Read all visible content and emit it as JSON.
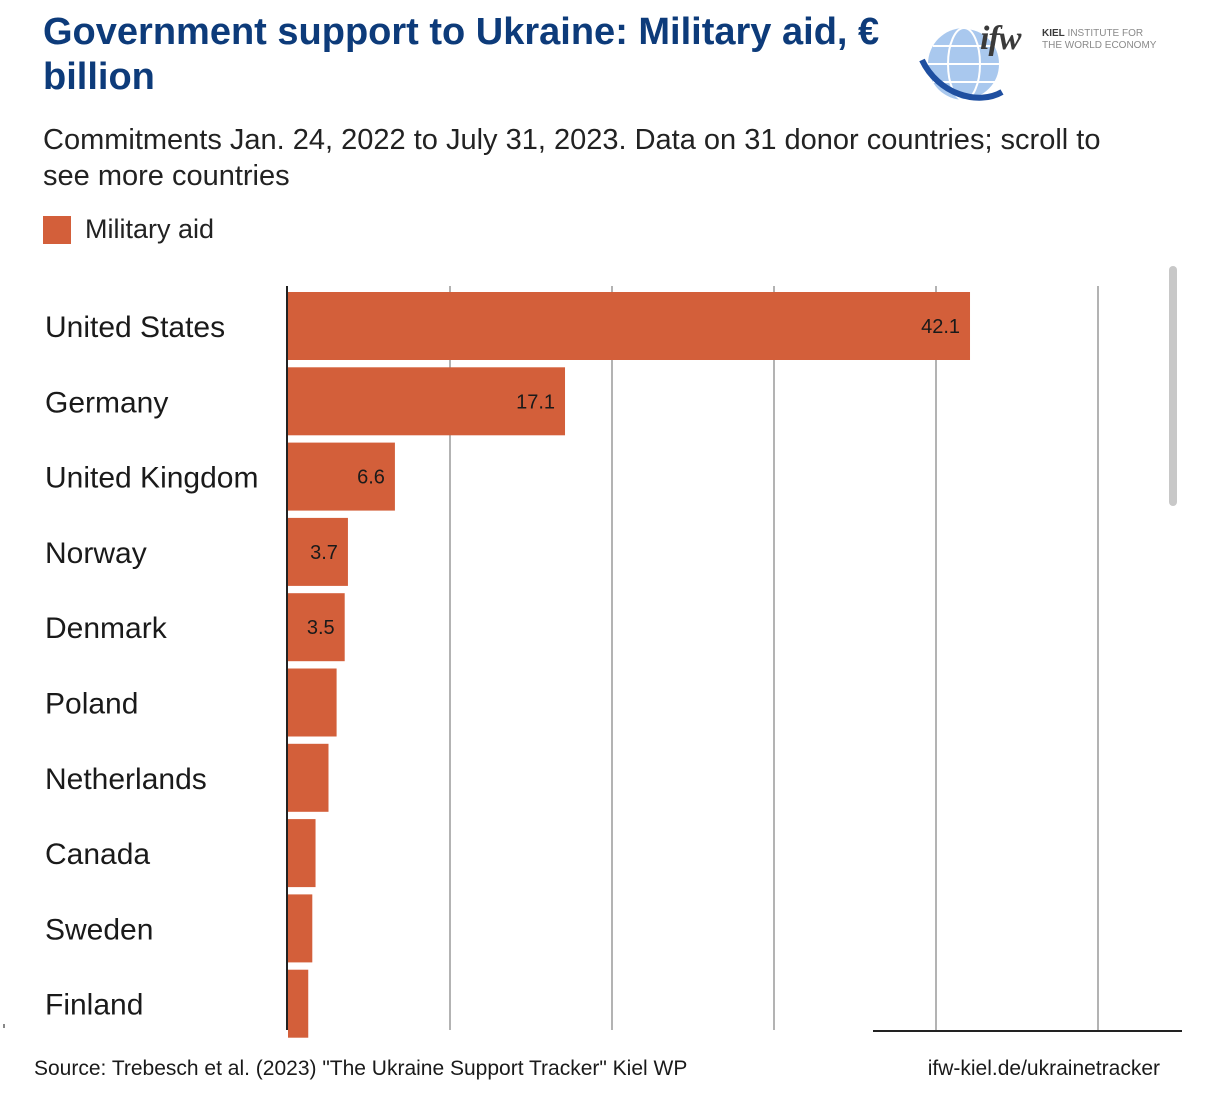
{
  "header": {
    "title": "Government support to Ukraine: Military aid, € billion",
    "subtitle": "Commitments Jan. 24, 2022 to July 31, 2023. Data on 31 donor countries; scroll to see more countries"
  },
  "logo": {
    "mark": "ifw",
    "org_line1_bold": "KIEL",
    "org_line1": " INSTITUTE FOR",
    "org_line2": "THE WORLD ECONOMY"
  },
  "legend": {
    "label": "Military aid",
    "color": "#d35f3a"
  },
  "footer": {
    "source": "Source: Trebesch et al. (2023) \"The Ukraine Support Tracker\" Kiel WP",
    "url": "ifw-kiel.de/ukrainetracker"
  },
  "chart_data": {
    "type": "bar",
    "orientation": "horizontal",
    "title": "Government support to Ukraine: Military aid, € billion",
    "series": [
      {
        "name": "Military aid",
        "values": [
          42.1,
          17.1,
          6.6,
          3.7,
          3.5,
          3.0,
          2.5,
          1.7,
          1.5,
          1.25
        ]
      }
    ],
    "categories": [
      "United States",
      "Germany",
      "United Kingdom",
      "Norway",
      "Denmark",
      "Poland",
      "Netherlands",
      "Canada",
      "Sweden",
      "Finland"
    ],
    "data_labels": [
      "42.1",
      "17.1",
      "6.6",
      "3.7",
      "3.5",
      "",
      "",
      "",
      "",
      ""
    ],
    "xlim": [
      0,
      55
    ],
    "grid_values": [
      10,
      20,
      30,
      40,
      50
    ],
    "grid": true,
    "bar_color": "#d35f3a"
  }
}
